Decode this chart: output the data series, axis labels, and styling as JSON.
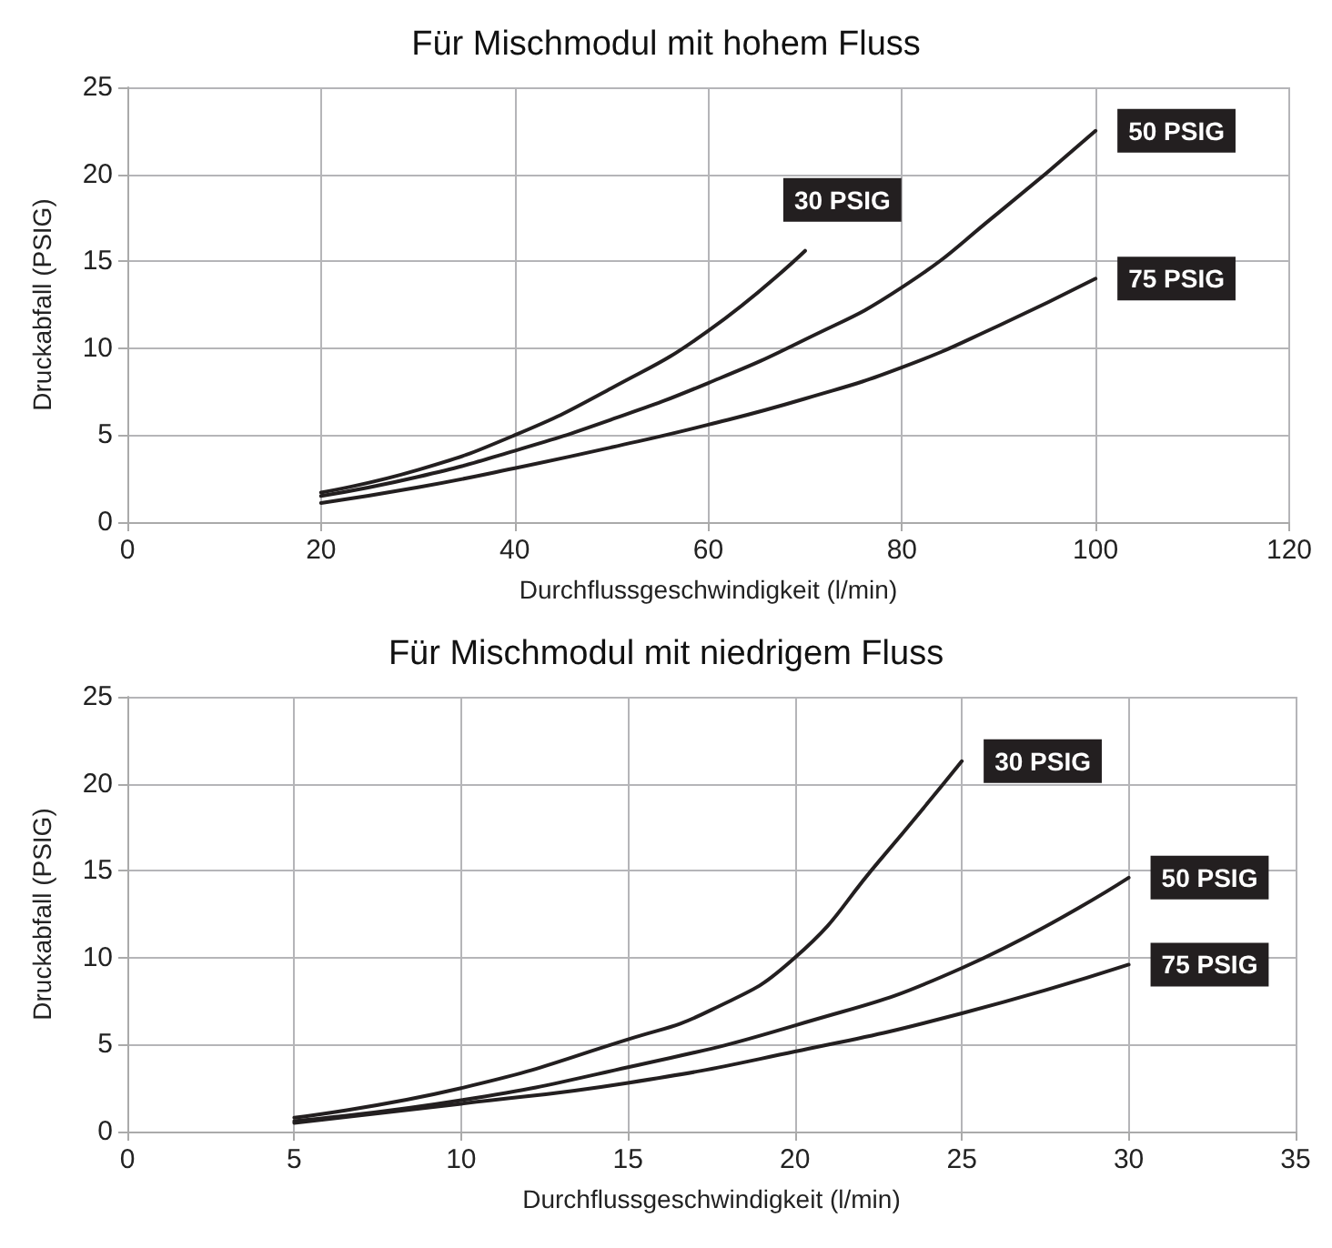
{
  "chart_data": [
    {
      "type": "line",
      "title": "Für Mischmodul mit hohem Fluss",
      "xlabel": "Durchflussgeschwindigkeit (l/min)",
      "ylabel": "Druckabfall (PSIG)",
      "xlim": [
        0,
        120
      ],
      "xticks": [
        0,
        20,
        40,
        60,
        80,
        100,
        120
      ],
      "ylim": [
        0,
        25
      ],
      "yticks": [
        0,
        5,
        10,
        15,
        20,
        25
      ],
      "grid": true,
      "legend": false,
      "marker": "none",
      "line_style": "solid",
      "series": [
        {
          "name": "30 PSIG",
          "color": "#231f20",
          "x": [
            20,
            30,
            40,
            50,
            60,
            70
          ],
          "values": [
            1.7,
            3.0,
            5.0,
            7.7,
            11,
            15.6
          ]
        },
        {
          "name": "50 PSIG",
          "color": "#231f20",
          "x": [
            20,
            30,
            40,
            50,
            60,
            70,
            80,
            90,
            100
          ],
          "values": [
            1.5,
            2.6,
            4.1,
            5.9,
            8.0,
            10.5,
            13.5,
            17.8,
            22.5
          ]
        },
        {
          "name": "75 PSIG",
          "color": "#231f20",
          "x": [
            20,
            30,
            40,
            50,
            60,
            70,
            80,
            90,
            100
          ],
          "values": [
            1.1,
            2.0,
            3.1,
            4.3,
            5.6,
            7.1,
            8.9,
            11.3,
            14.0
          ]
        }
      ]
    },
    {
      "type": "line",
      "title": "Für Mischmodul mit niedrigem Fluss",
      "xlabel": "Durchflussgeschwindigkeit (l/min)",
      "ylabel": "Druckabfall (PSIG)",
      "xlim": [
        0,
        35
      ],
      "xticks": [
        0,
        5,
        10,
        15,
        20,
        25,
        30,
        35
      ],
      "ylim": [
        0,
        25
      ],
      "yticks": [
        0,
        5,
        10,
        15,
        20,
        25
      ],
      "grid": true,
      "legend": false,
      "marker": "none",
      "line_style": "solid",
      "series": [
        {
          "name": "30 PSIG",
          "color": "#231f20",
          "x": [
            5,
            10,
            15,
            17.5,
            20,
            22.5,
            25
          ],
          "values": [
            0.8,
            2.5,
            5.3,
            7,
            10,
            15.5,
            21.3
          ]
        },
        {
          "name": "50 PSIG",
          "color": "#231f20",
          "x": [
            5,
            10,
            15,
            20,
            25,
            30
          ],
          "values": [
            0.6,
            1.8,
            3.7,
            6.1,
            9.4,
            14.6
          ]
        },
        {
          "name": "75 PSIG",
          "color": "#231f20",
          "x": [
            5,
            10,
            15,
            20,
            25,
            30
          ],
          "values": [
            0.5,
            1.6,
            2.8,
            4.6,
            6.8,
            9.6
          ]
        }
      ]
    }
  ]
}
